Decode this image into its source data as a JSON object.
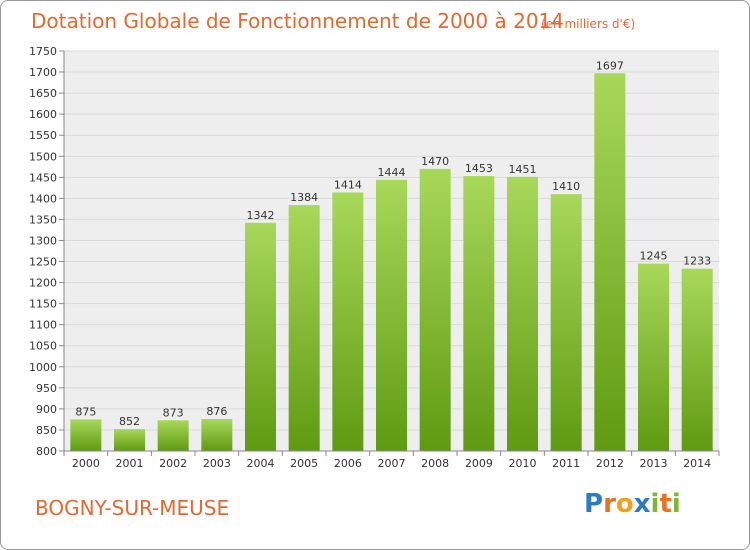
{
  "title": "Dotation Globale de Fonctionnement de 2000 à 2014",
  "subtitle": "(en milliers d'€)",
  "city": "BOGNY-SUR-MEUSE",
  "logo": {
    "letters": [
      "P",
      "r",
      "o",
      "x",
      "i",
      "t",
      "i"
    ],
    "colors": [
      "#2e7bbf",
      "#e8731f",
      "#f0a21e",
      "#2e7bbf",
      "#7cb832",
      "#e8731f",
      "#7cb832"
    ]
  },
  "colors": {
    "accent": "#e06a32",
    "bar_top": "#a8d85a",
    "bar_bottom": "#5f9a12",
    "grid": "#d9d9d9",
    "panel": "#eeeeee",
    "text": "#333333"
  },
  "chart_data": {
    "type": "bar",
    "title": "Dotation Globale de Fonctionnement de 2000 à 2014",
    "xlabel": "",
    "ylabel": "",
    "ylim": [
      800,
      1750
    ],
    "yticks": [
      800,
      850,
      900,
      950,
      1000,
      1050,
      1100,
      1150,
      1200,
      1250,
      1300,
      1350,
      1400,
      1450,
      1500,
      1550,
      1600,
      1650,
      1700,
      1750
    ],
    "categories": [
      "2000",
      "2001",
      "2002",
      "2003",
      "2004",
      "2005",
      "2006",
      "2007",
      "2008",
      "2009",
      "2010",
      "2011",
      "2012",
      "2013",
      "2014"
    ],
    "values": [
      875,
      852,
      873,
      876,
      1342,
      1384,
      1414,
      1444,
      1470,
      1453,
      1451,
      1410,
      1697,
      1245,
      1233
    ],
    "labels": [
      "875",
      "852",
      "873",
      "876",
      "1342",
      "1384",
      "1414",
      "1444",
      "1470",
      "1453",
      "1451",
      "1410",
      "1697",
      "1245",
      "1233"
    ],
    "grid": true
  }
}
